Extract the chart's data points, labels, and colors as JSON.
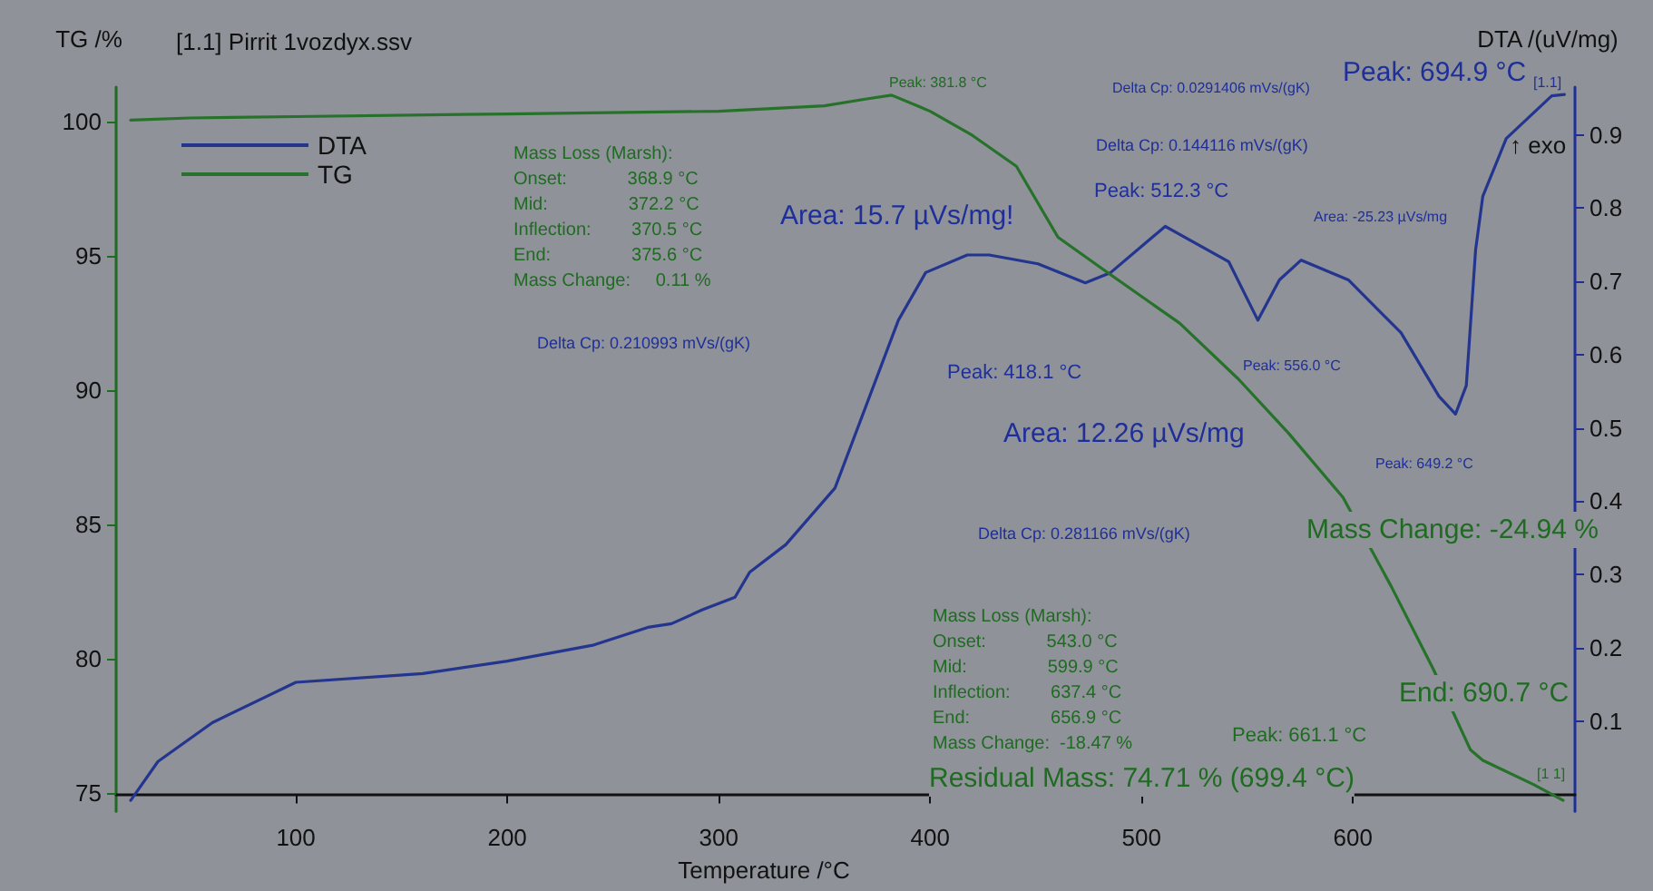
{
  "chart_data": {
    "type": "line",
    "xlabel": "Temperature /°C",
    "ylabel": "TG /%",
    "y2label": "DTA /(uV/mg)",
    "xlim": [
      15,
      705
    ],
    "xticks": [
      100,
      200,
      300,
      400,
      500,
      600
    ],
    "ylim": [
      74.3,
      101.3
    ],
    "yticks": [
      75,
      80,
      85,
      90,
      95,
      100
    ],
    "y2lim": [
      -0.023,
      0.965
    ],
    "y2ticks": [
      0.1,
      0.2,
      0.3,
      0.4,
      0.5,
      0.6,
      0.7,
      0.8,
      0.9
    ],
    "legend": "top left",
    "grid": false,
    "marker": "none",
    "line_style": "solid",
    "series": [
      {
        "name": "DTA",
        "color": "#23358f",
        "axis": "y2",
        "x": [
          21.9,
          34.8,
          60.5,
          100,
          160,
          200,
          241,
          266.5,
          277.7,
          292.3,
          307.7,
          314.6,
          331.8,
          355,
          385,
          397.9,
          417.6,
          427.9,
          451,
          473.4,
          485.4,
          511.2,
          541.2,
          555,
          565.2,
          575.5,
          597.8,
          622.7,
          640.7,
          648.5,
          653.6,
          658,
          661.4,
          672.5,
          694,
          700
        ],
        "values": [
          -0.008,
          0.045,
          0.098,
          0.153,
          0.165,
          0.182,
          0.204,
          0.228,
          0.233,
          0.252,
          0.269,
          0.303,
          0.341,
          0.418,
          0.647,
          0.712,
          0.736,
          0.736,
          0.724,
          0.698,
          0.712,
          0.775,
          0.727,
          0.647,
          0.702,
          0.729,
          0.702,
          0.63,
          0.543,
          0.519,
          0.558,
          0.743,
          0.816,
          0.895,
          0.953,
          0.955
        ]
      },
      {
        "name": "TG",
        "color": "#27722a",
        "x": [
          21.9,
          50,
          100,
          200,
          300,
          350,
          370,
          381.8,
          400,
          420,
          440.8,
          460.5,
          483.7,
          518,
          546,
          569.5,
          595.3,
          618,
          638,
          655.5,
          661.4,
          685.4,
          699.4
        ],
        "values": [
          100.07,
          100.15,
          100.2,
          100.3,
          100.4,
          100.6,
          100.86,
          101.0,
          100.4,
          99.5,
          98.35,
          95.7,
          94.4,
          92.5,
          90.4,
          88.4,
          86.0,
          82.7,
          79.6,
          76.6,
          76.2,
          75.3,
          74.71
        ]
      }
    ],
    "annotations": [
      "[1.1] Pirrit 1vozdyx.ssv",
      "Mass Loss (Marsh):\nOnset:            368.9 °C\nMid:                372.2 °C\nInflection:        370.5 °C\nEnd:                375.6 °C\nMass Change:     0.11 %",
      "Peak: 381.8 °C",
      "Delta Cp: 0.0291406 mVs/(gK)",
      "Peak: 694.9 °C",
      "[1.1]",
      "↑ exo",
      "Delta Cp: 0.144116 mVs/(gK)",
      "Peak: 512.3 °C",
      "Area: -25.23 µVs/mg",
      "Area: 15.7 µVs/mg!",
      "Delta Cp: 0.210993 mVs/(gK)",
      "Peak: 418.1 °C",
      "Peak: 556.0 °C",
      "Area: 12.26 µVs/mg",
      "Peak: 649.2 °C",
      "Delta Cp: 0.281166 mVs/(gK)",
      "Mass Change: -24.94 %",
      "Mass Loss (Marsh):\nOnset:            543.0 °C\nMid:                599.9 °C\nInflection:        637.4 °C\nEnd:                656.9 °C\nMass Change:  -18.47 %",
      "End: 690.7 °C",
      "Peak: 661.1 °C",
      "Residual Mass: 74.71 % (699.4 °C)",
      "[1 1]"
    ]
  }
}
